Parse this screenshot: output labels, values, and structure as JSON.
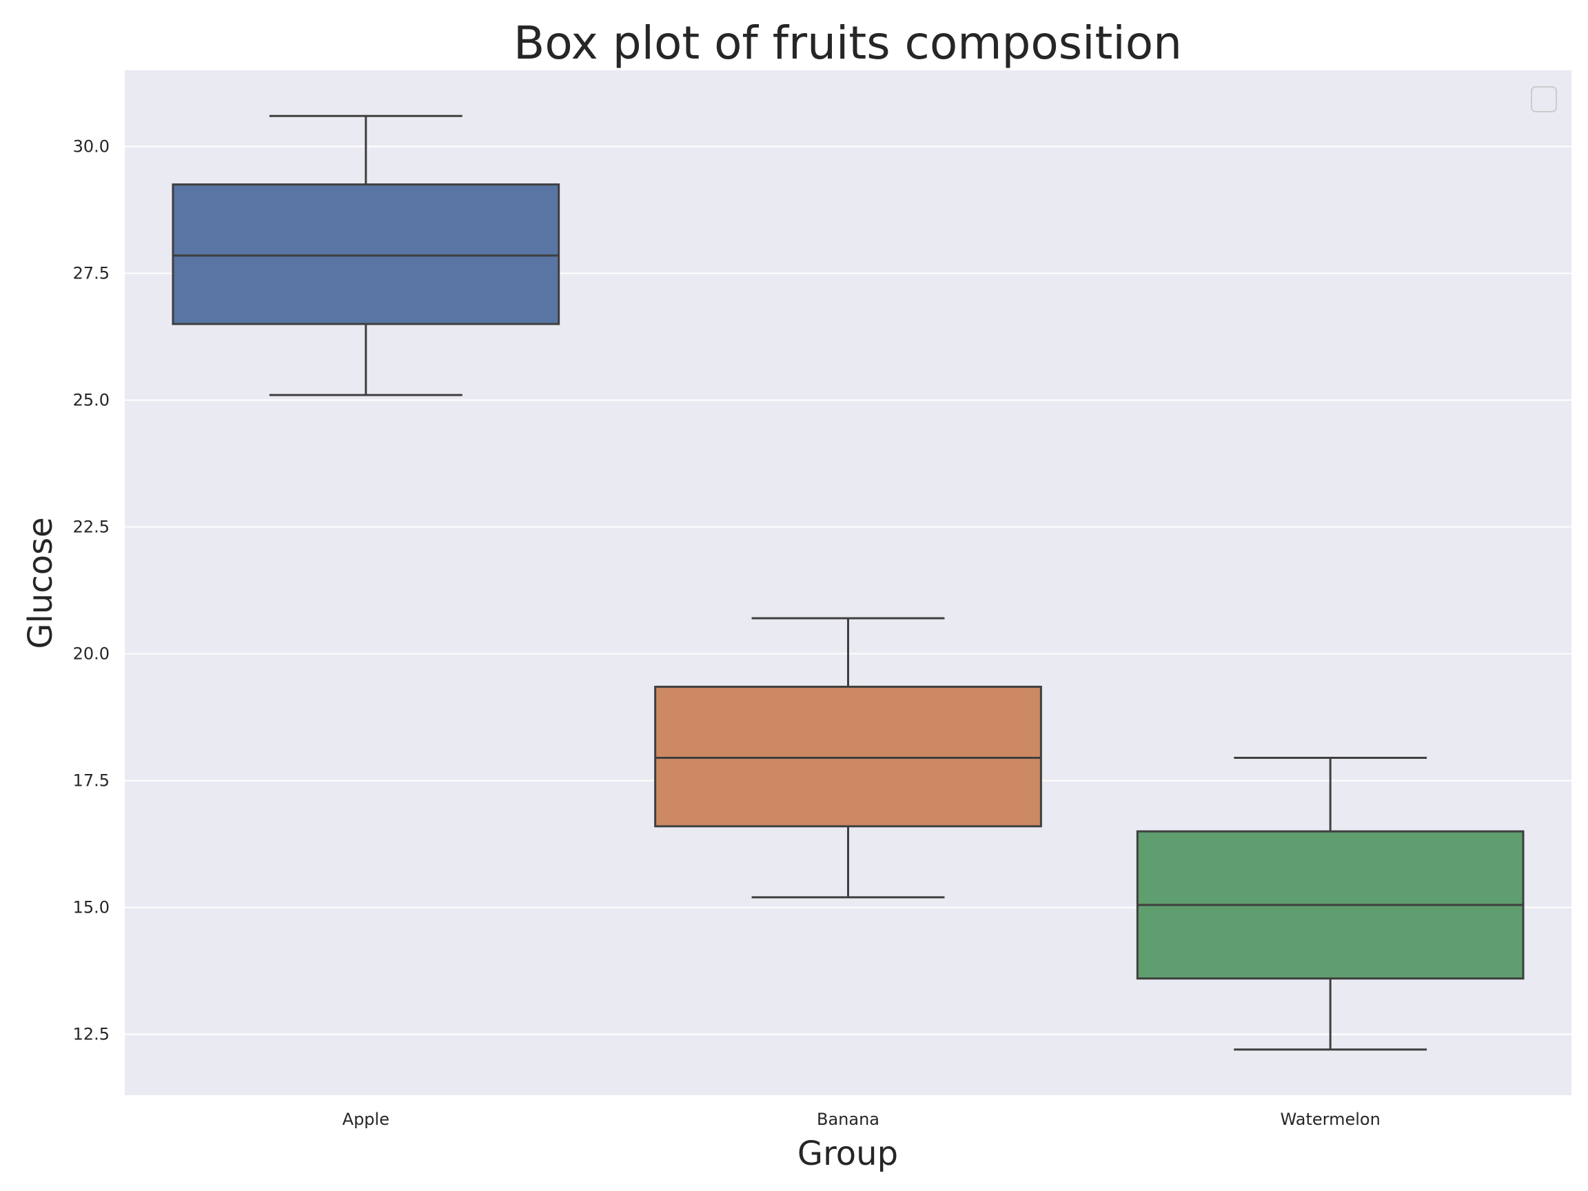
{
  "chart_data": {
    "type": "box",
    "title": "Box plot of fruits composition",
    "xlabel": "Group",
    "ylabel": "Glucose",
    "categories": [
      "Apple",
      "Banana",
      "Watermelon"
    ],
    "series": [
      {
        "category": "Apple",
        "whisker_low": 25.1,
        "q1": 26.5,
        "median": 27.85,
        "q3": 29.25,
        "whisker_high": 30.6,
        "color": "#5975a4"
      },
      {
        "category": "Banana",
        "whisker_low": 15.2,
        "q1": 16.6,
        "median": 17.95,
        "q3": 19.35,
        "whisker_high": 20.7,
        "color": "#cc8963"
      },
      {
        "category": "Watermelon",
        "whisker_low": 12.2,
        "q1": 13.6,
        "median": 15.05,
        "q3": 16.5,
        "whisker_high": 17.95,
        "color": "#5f9e6e"
      }
    ],
    "ylim": [
      11.3,
      31.5
    ],
    "yticks": [
      "12.5",
      "15.0",
      "17.5",
      "20.0",
      "22.5",
      "25.0",
      "27.5",
      "30.0"
    ],
    "grid": true,
    "legend": "top-right (empty)",
    "background": "#eaeaf2",
    "grid_color": "#ffffff",
    "line_color": "#3f3f3f"
  }
}
